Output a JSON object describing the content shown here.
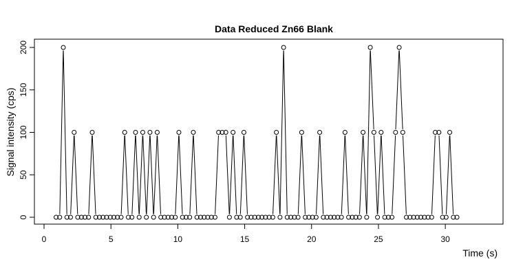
{
  "chart_data": {
    "type": "line",
    "title": "Data Reduced Zn66 Blank",
    "xlabel": "Time (s)",
    "ylabel": "Signal intensity (cps)",
    "xlim": [
      0,
      32
    ],
    "ylim": [
      0,
      200
    ],
    "x_ticks": [
      0,
      5,
      10,
      15,
      20,
      25,
      30
    ],
    "y_ticks": [
      0,
      50,
      100,
      150,
      200
    ],
    "marker": "open-circle",
    "line_color": "#000000",
    "grid": false,
    "x": [
      0.9,
      1.17,
      1.44,
      1.71,
      1.98,
      2.25,
      2.52,
      2.79,
      3.06,
      3.33,
      3.6,
      3.87,
      4.14,
      4.41,
      4.68,
      4.95,
      5.22,
      5.49,
      5.76,
      6.03,
      6.3,
      6.57,
      6.84,
      7.11,
      7.38,
      7.65,
      7.92,
      8.19,
      8.46,
      8.73,
      9.0,
      9.27,
      9.54,
      9.81,
      10.08,
      10.35,
      10.62,
      10.89,
      11.16,
      11.43,
      11.7,
      11.97,
      12.24,
      12.51,
      12.78,
      13.05,
      13.32,
      13.59,
      13.86,
      14.13,
      14.4,
      14.67,
      14.94,
      15.21,
      15.48,
      15.75,
      16.02,
      16.29,
      16.56,
      16.83,
      17.1,
      17.37,
      17.64,
      17.91,
      18.18,
      18.45,
      18.72,
      18.99,
      19.26,
      19.53,
      19.8,
      20.07,
      20.34,
      20.61,
      20.88,
      21.15,
      21.42,
      21.69,
      21.96,
      22.23,
      22.5,
      22.77,
      23.04,
      23.31,
      23.58,
      23.85,
      24.12,
      24.39,
      24.66,
      24.93,
      25.2,
      25.47,
      25.74,
      26.01,
      26.28,
      26.55,
      26.82,
      27.09,
      27.36,
      27.63,
      27.9,
      28.17,
      28.44,
      28.71,
      28.98,
      29.25,
      29.52,
      29.79,
      30.06,
      30.33,
      30.6,
      30.87
    ],
    "y": [
      0,
      0,
      200,
      0,
      0,
      100,
      0,
      0,
      0,
      0,
      100,
      0,
      0,
      0,
      0,
      0,
      0,
      0,
      0,
      100,
      0,
      0,
      100,
      0,
      100,
      0,
      100,
      0,
      100,
      0,
      0,
      0,
      0,
      0,
      100,
      0,
      0,
      0,
      100,
      0,
      0,
      0,
      0,
      0,
      0,
      100,
      100,
      100,
      0,
      100,
      0,
      0,
      100,
      0,
      0,
      0,
      0,
      0,
      0,
      0,
      0,
      100,
      0,
      200,
      0,
      0,
      0,
      0,
      100,
      0,
      0,
      0,
      0,
      100,
      0,
      0,
      0,
      0,
      0,
      0,
      100,
      0,
      0,
      0,
      0,
      100,
      0,
      200,
      100,
      0,
      100,
      0,
      0,
      0,
      100,
      200,
      100,
      0,
      0,
      0,
      0,
      0,
      0,
      0,
      0,
      100,
      100,
      0,
      0,
      100,
      0,
      0
    ]
  }
}
